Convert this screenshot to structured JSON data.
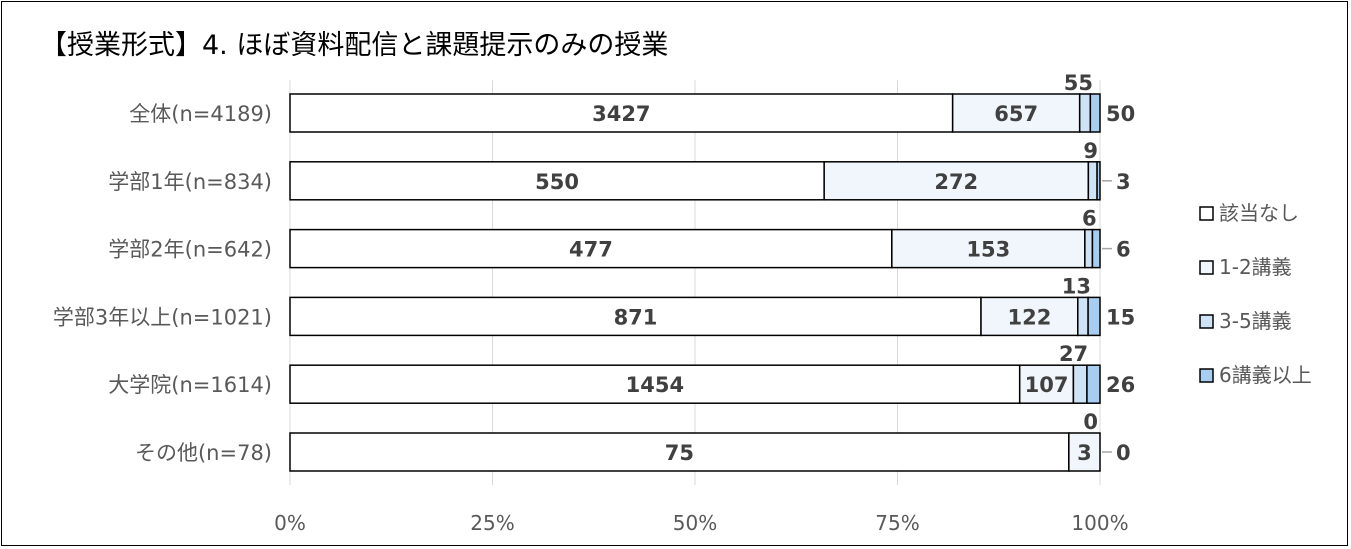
{
  "chart_data": {
    "type": "bar",
    "orientation": "horizontal",
    "stacked": "percent",
    "title": "【授業形式】4. ほぼ資料配信と課題提示のみの授業",
    "categories": [
      "全体(n=4189)",
      "学部1年(n=834)",
      "学部2年(n=642)",
      "学部3年以上(n=1021)",
      "大学院(n=1614)",
      "その他(n=78)"
    ],
    "series": [
      {
        "name": "該当なし",
        "color": "#ffffff",
        "values": [
          3427,
          550,
          477,
          871,
          1454,
          75
        ]
      },
      {
        "name": "1-2講義",
        "color": "#f0f6fc",
        "values": [
          657,
          272,
          153,
          122,
          107,
          3
        ]
      },
      {
        "name": "3-5講義",
        "color": "#cfe3f6",
        "values": [
          55,
          9,
          6,
          13,
          27,
          0
        ]
      },
      {
        "name": "6講義以上",
        "color": "#a9cdf0",
        "values": [
          50,
          3,
          6,
          15,
          26,
          0
        ]
      }
    ],
    "xticks": [
      "0%",
      "25%",
      "50%",
      "75%",
      "100%"
    ],
    "xlim": [
      0,
      100
    ],
    "grid": true,
    "legend": "right"
  }
}
